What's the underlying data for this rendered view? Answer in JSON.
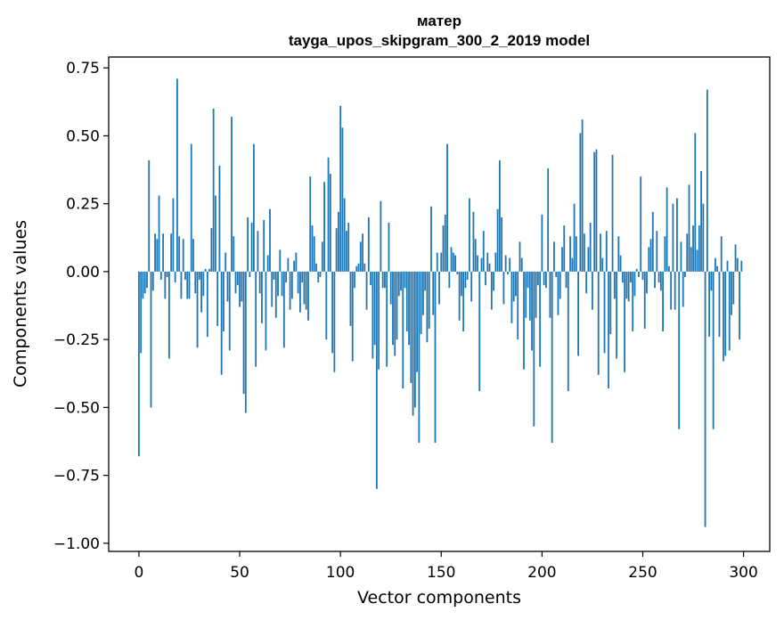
{
  "chart_data": {
    "type": "bar",
    "title": "матер",
    "subtitle": "tayga_upos_skipgram_300_2_2019 model",
    "xlabel": "Vector components",
    "ylabel": "Components values",
    "xlim": [
      -15,
      313
    ],
    "ylim": [
      -1.03,
      0.79
    ],
    "xticks": [
      0,
      50,
      100,
      150,
      200,
      250,
      300
    ],
    "xtick_labels": [
      "0",
      "50",
      "100",
      "150",
      "200",
      "250",
      "300"
    ],
    "yticks": [
      -1.0,
      -0.75,
      -0.5,
      -0.25,
      0.0,
      0.25,
      0.5,
      0.75
    ],
    "ytick_labels": [
      "−1.00",
      "−0.75",
      "−0.50",
      "−0.25",
      "0.00",
      "0.25",
      "0.50",
      "0.75"
    ],
    "grid": false,
    "bar_color": "#1f77b4",
    "x": [
      0,
      1,
      2,
      3,
      4,
      5,
      6,
      7,
      8,
      9,
      10,
      11,
      12,
      13,
      14,
      15,
      16,
      17,
      18,
      19,
      20,
      21,
      22,
      23,
      24,
      25,
      26,
      27,
      28,
      29,
      30,
      31,
      32,
      33,
      34,
      35,
      36,
      37,
      38,
      39,
      40,
      41,
      42,
      43,
      44,
      45,
      46,
      47,
      48,
      49,
      50,
      51,
      52,
      53,
      54,
      55,
      56,
      57,
      58,
      59,
      60,
      61,
      62,
      63,
      64,
      65,
      66,
      67,
      68,
      69,
      70,
      71,
      72,
      73,
      74,
      75,
      76,
      77,
      78,
      79,
      80,
      81,
      82,
      83,
      84,
      85,
      86,
      87,
      88,
      89,
      90,
      91,
      92,
      93,
      94,
      95,
      96,
      97,
      98,
      99,
      100,
      101,
      102,
      103,
      104,
      105,
      106,
      107,
      108,
      109,
      110,
      111,
      112,
      113,
      114,
      115,
      116,
      117,
      118,
      119,
      120,
      121,
      122,
      123,
      124,
      125,
      126,
      127,
      128,
      129,
      130,
      131,
      132,
      133,
      134,
      135,
      136,
      137,
      138,
      139,
      140,
      141,
      142,
      143,
      144,
      145,
      146,
      147,
      148,
      149,
      150,
      151,
      152,
      153,
      154,
      155,
      156,
      157,
      158,
      159,
      160,
      161,
      162,
      163,
      164,
      165,
      166,
      167,
      168,
      169,
      170,
      171,
      172,
      173,
      174,
      175,
      176,
      177,
      178,
      179,
      180,
      181,
      182,
      183,
      184,
      185,
      186,
      187,
      188,
      189,
      190,
      191,
      192,
      193,
      194,
      195,
      196,
      197,
      198,
      199,
      200,
      201,
      202,
      203,
      204,
      205,
      206,
      207,
      208,
      209,
      210,
      211,
      212,
      213,
      214,
      215,
      216,
      217,
      218,
      219,
      220,
      221,
      222,
      223,
      224,
      225,
      226,
      227,
      228,
      229,
      230,
      231,
      232,
      233,
      234,
      235,
      236,
      237,
      238,
      239,
      240,
      241,
      242,
      243,
      244,
      245,
      246,
      247,
      248,
      249,
      250,
      251,
      252,
      253,
      254,
      255,
      256,
      257,
      258,
      259,
      260,
      261,
      262,
      263,
      264,
      265,
      266,
      267,
      268,
      269,
      270,
      271,
      272,
      273,
      274,
      275,
      276,
      277,
      278,
      279,
      280,
      281,
      282,
      283,
      284,
      285,
      286,
      287,
      288,
      289,
      290,
      291,
      292,
      293,
      294,
      295,
      296,
      297,
      298,
      299
    ],
    "values": [
      -0.68,
      -0.3,
      -0.1,
      -0.08,
      -0.06,
      0.41,
      -0.5,
      -0.07,
      0.14,
      0.12,
      0.28,
      -0.03,
      0.14,
      -0.1,
      -0.02,
      -0.32,
      0.14,
      0.27,
      -0.04,
      0.71,
      0.13,
      -0.1,
      0.12,
      -0.03,
      -0.1,
      -0.1,
      0.47,
      0.12,
      -0.08,
      -0.28,
      -0.03,
      -0.15,
      -0.09,
      0.01,
      -0.24,
      0.01,
      0.16,
      0.6,
      0.28,
      -0.2,
      0.39,
      -0.38,
      -0.22,
      0.07,
      -0.11,
      -0.29,
      0.57,
      0.13,
      -0.08,
      -0.05,
      -0.13,
      -0.11,
      -0.45,
      -0.52,
      0.2,
      -0.02,
      0.18,
      0.47,
      -0.35,
      0.15,
      -0.08,
      -0.19,
      0.19,
      -0.29,
      0.06,
      0.23,
      -0.13,
      -0.03,
      -0.17,
      -0.09,
      0.08,
      -0.09,
      -0.28,
      -0.04,
      0.05,
      -0.14,
      -0.1,
      0.04,
      0.07,
      -0.08,
      -0.15,
      -0.04,
      -0.12,
      -0.14,
      -0.18,
      0.35,
      0.17,
      0.13,
      0.03,
      -0.04,
      -0.02,
      0.11,
      0.33,
      -0.25,
      0.42,
      0.36,
      -0.3,
      -0.37,
      0.16,
      0.22,
      0.61,
      0.53,
      0.27,
      0.15,
      0.18,
      -0.2,
      -0.33,
      -0.06,
      0.02,
      0.03,
      0.11,
      0.14,
      0.03,
      -0.14,
      0.2,
      -0.05,
      -0.32,
      -0.27,
      -0.8,
      -0.36,
      0.26,
      -0.06,
      -0.06,
      -0.35,
      0.18,
      -0.12,
      -0.27,
      -0.31,
      -0.25,
      -0.09,
      -0.07,
      -0.43,
      -0.06,
      -0.22,
      -0.27,
      -0.41,
      -0.53,
      -0.5,
      -0.37,
      -0.63,
      -0.23,
      -0.16,
      -0.07,
      -0.26,
      -0.21,
      0.24,
      -0.16,
      -0.63,
      0.07,
      -0.12,
      0.07,
      0.17,
      0.21,
      0.47,
      -0.06,
      0.09,
      0.07,
      0.06,
      -0.01,
      -0.18,
      -0.09,
      -0.22,
      -0.06,
      -0.03,
      0.27,
      -0.11,
      0.22,
      0.12,
      0.06,
      -0.44,
      0.05,
      0.15,
      -0.05,
      0.07,
      0.03,
      -0.14,
      -0.07,
      0.07,
      0.23,
      0.41,
      0.2,
      -0.12,
      0.06,
      -0.01,
      0.05,
      -0.19,
      -0.11,
      -0.09,
      -0.25,
      0.11,
      0.05,
      -0.36,
      -0.17,
      -0.06,
      -0.18,
      -0.29,
      -0.57,
      -0.17,
      -0.05,
      -0.35,
      0.21,
      -0.05,
      -0.06,
      0.38,
      -0.17,
      -0.63,
      0.11,
      -0.02,
      -0.16,
      -0.1,
      0.09,
      0.17,
      -0.06,
      -0.44,
      0.13,
      0.05,
      0.25,
      0.13,
      -0.31,
      0.51,
      0.56,
      0.14,
      -0.08,
      0.09,
      0.18,
      -0.14,
      0.44,
      0.45,
      -0.38,
      0.14,
      0.05,
      -0.3,
      0.15,
      -0.43,
      -0.23,
      0.43,
      -0.1,
      -0.32,
      0.13,
      0.06,
      -0.04,
      -0.37,
      -0.1,
      -0.11,
      -0.04,
      -0.22,
      -0.09,
      0.01,
      -0.02,
      0.35,
      -0.03,
      -0.21,
      -0.08,
      0.09,
      0.12,
      0.22,
      -0.06,
      0.15,
      -0.04,
      -0.07,
      -0.22,
      0.13,
      0.31,
      0.02,
      -0.14,
      0.25,
      -0.14,
      0.27,
      -0.58,
      0.11,
      -0.13,
      -0.02,
      0.14,
      0.32,
      0.09,
      0.17,
      0.51,
      0.08,
      0.17,
      0.37,
      0.25,
      -0.94,
      0.67,
      -0.24,
      -0.07,
      -0.58,
      0.05,
      0.02,
      -0.24,
      0.13,
      -0.33,
      -0.31,
      0.04,
      -0.29,
      -0.16,
      -0.12,
      0.1,
      0.05,
      -0.25,
      0.04
    ]
  }
}
